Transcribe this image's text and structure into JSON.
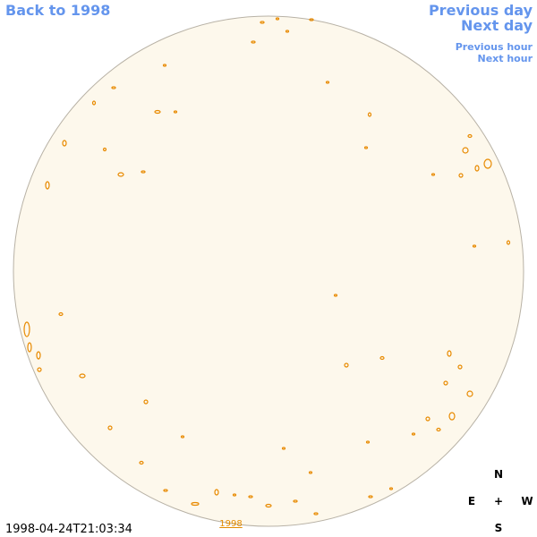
{
  "nav": {
    "back": "Back to 1998",
    "previous_day": "Previous day",
    "next_day": "Next day",
    "previous_hour": "Previous hour",
    "next_hour": "Next hour"
  },
  "timestamp": "1998-04-24T21:03:34",
  "image_link": "1998",
  "compass": {
    "north": "N",
    "east": "E",
    "center": "+",
    "west": "W",
    "south": "S"
  }
}
